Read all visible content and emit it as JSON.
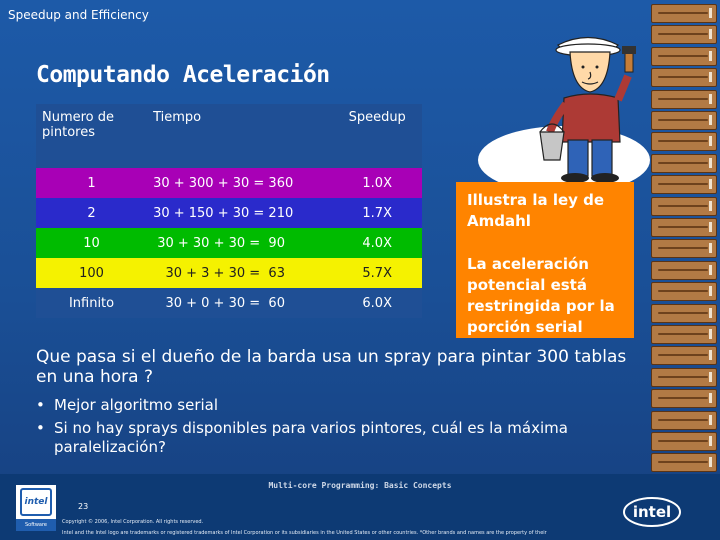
{
  "header": {
    "text": "Speedup and Efficiency"
  },
  "slide": {
    "title": "Computando Aceleración"
  },
  "table": {
    "headers": [
      "Numero de\npintores",
      "Tiempo",
      "Speedup"
    ],
    "rows": [
      {
        "painters": "1",
        "time_expr": "30 + 300 + 30 = 360",
        "speedup": "1.0X",
        "color": "#a800b6"
      },
      {
        "painters": "2",
        "time_expr": "30 + 150 + 30 = 210",
        "speedup": "1.7X",
        "color": "#2a2acb"
      },
      {
        "painters": "10",
        "time_expr": " 30 + 30 + 30 =  90",
        "speedup": "4.0X",
        "color": "#00bb00"
      },
      {
        "painters": "100",
        "time_expr": "   30 + 3 + 30 =  63",
        "speedup": "5.7X",
        "color": "#f5f200"
      },
      {
        "painters": "Infinito",
        "time_expr": "   30 + 0 + 30 =  60",
        "speedup": "6.0X",
        "color": "#1f4f95"
      }
    ]
  },
  "callout": {
    "line1": "Illustra la ley de Amdahl",
    "line2": "La aceleración potencial está restringida por la porción serial",
    "color": "#ff8400"
  },
  "question": "Que pasa si el dueño de la barda usa un spray para pintar 300 tablas en una hora ?",
  "bullets": [
    "Mejor algoritmo serial",
    "Si no hay sprays disponibles para varios pintores, cuál es la máxima paralelización?"
  ],
  "footer": {
    "title": "Multi-core Programming: Basic Concepts",
    "page_number": "23",
    "copyright": "Copyright © 2006, Intel Corporation. All rights reserved.",
    "trademark": "Intel and the Intel logo are trademarks or registered trademarks of Intel Corporation or its subsidiaries in the United States or other countries. *Other brands and names are the property of their",
    "badge_logo": "intel",
    "badge_text": "Software",
    "logo_text": "intel"
  },
  "icons": {
    "painter": "painter-illustration-icon",
    "fence": "wooden-fence-icon",
    "intel": "intel-logo-icon"
  }
}
